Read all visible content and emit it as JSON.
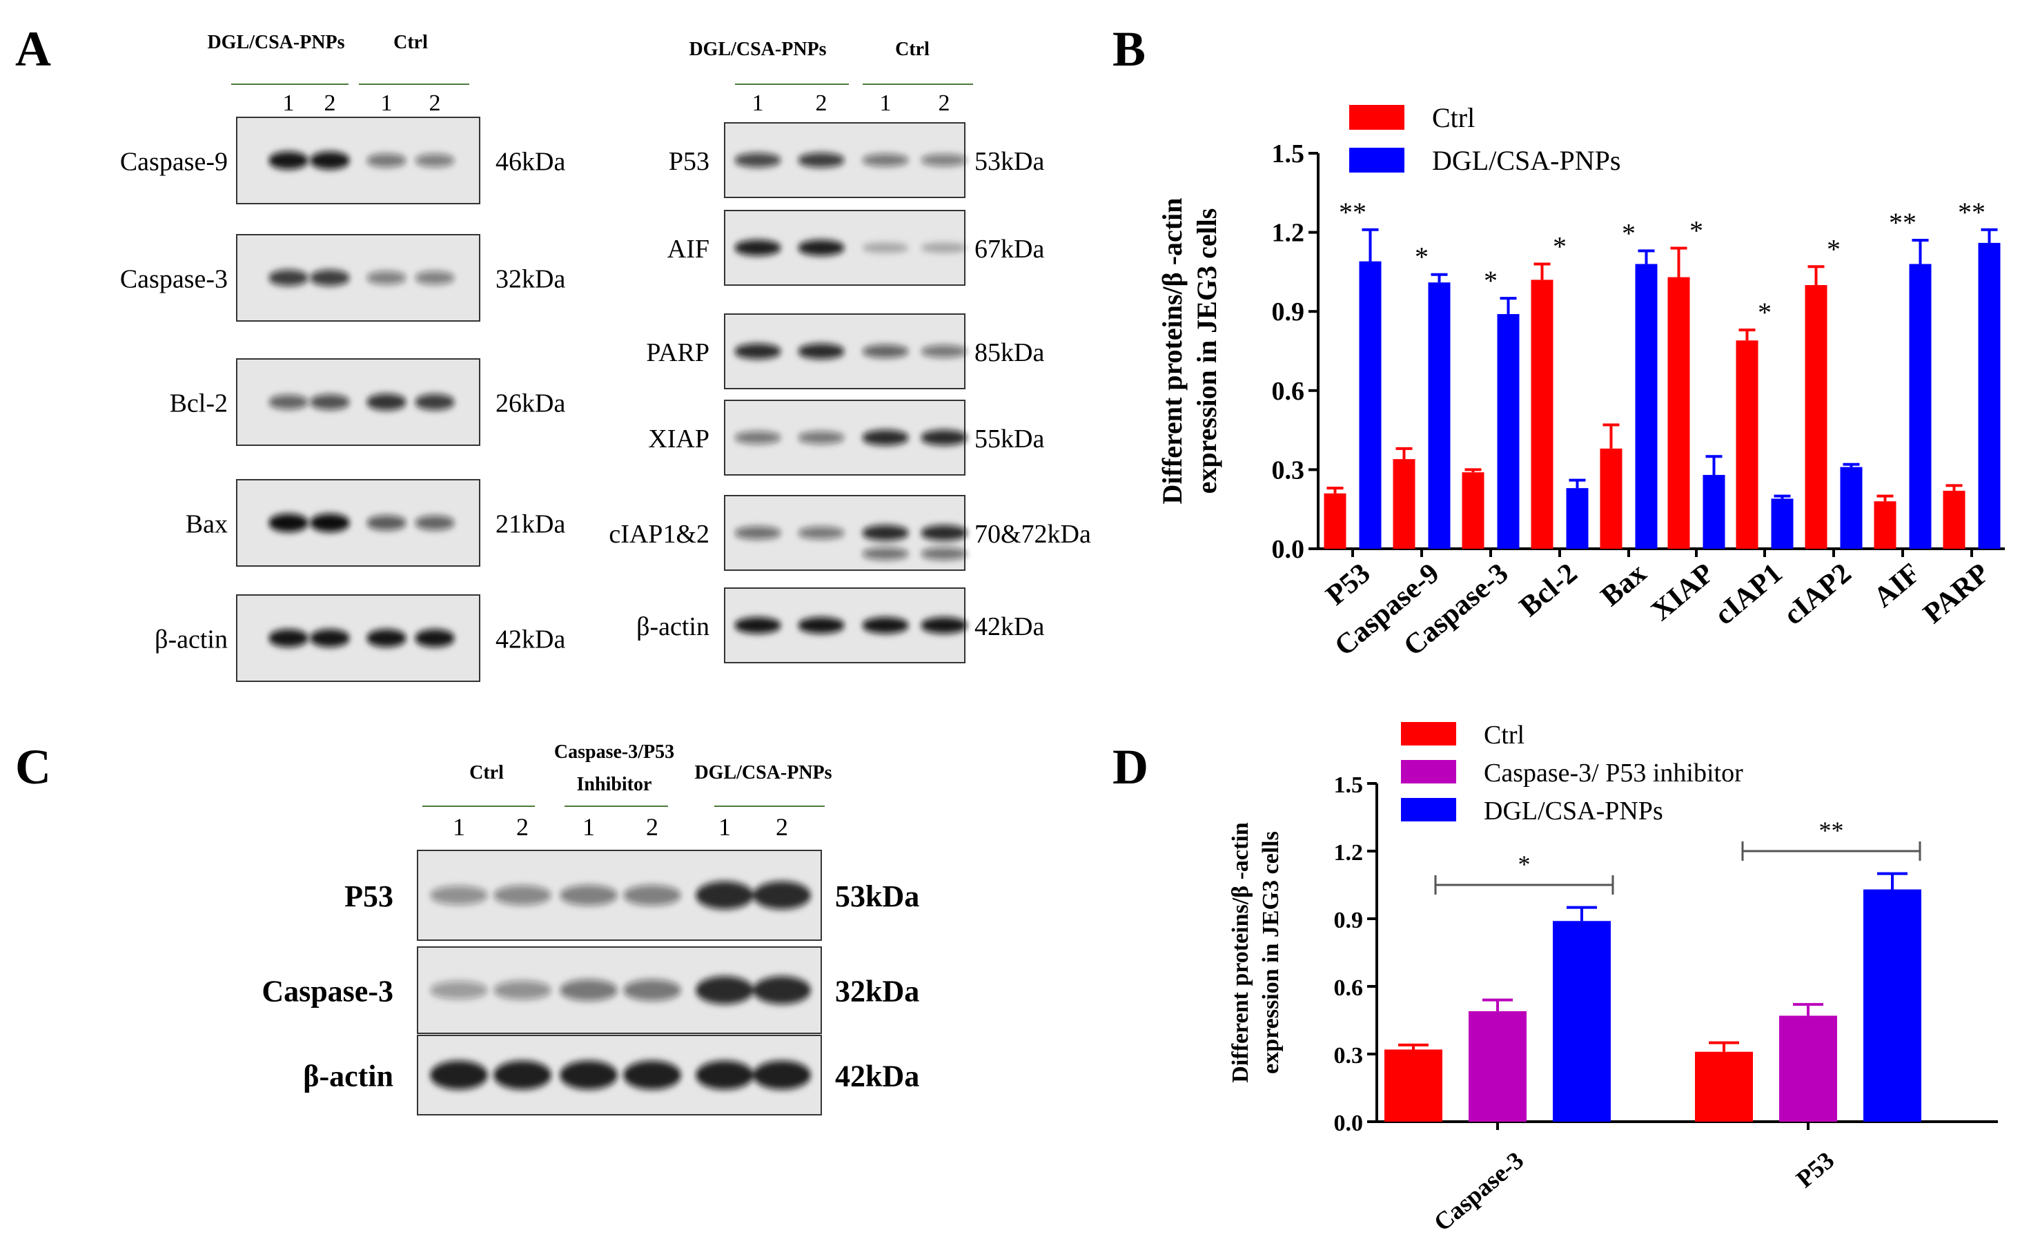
{
  "panel_labels": {
    "a": "A",
    "b": "B",
    "c": "C",
    "d": "D"
  },
  "blot_a": {
    "left": {
      "groups": [
        "DGL/CSA-PNPs",
        "Ctrl"
      ],
      "lanes": [
        "1",
        "2",
        "1",
        "2"
      ],
      "rows": [
        {
          "label": "Caspase-9",
          "kda": "46kDa",
          "bands": [
            0.95,
            0.95,
            0.45,
            0.4
          ]
        },
        {
          "label": "Caspase-3",
          "kda": "32kDa",
          "bands": [
            0.75,
            0.75,
            0.4,
            0.4
          ]
        },
        {
          "label": "Bcl-2",
          "kda": "26kDa",
          "bands": [
            0.55,
            0.65,
            0.8,
            0.75
          ]
        },
        {
          "label": "Bax",
          "kda": "21kDa",
          "bands": [
            1.0,
            1.0,
            0.6,
            0.55
          ]
        },
        {
          "label": "β-actin",
          "kda": "42kDa",
          "bands": [
            0.95,
            0.95,
            0.95,
            0.95
          ]
        }
      ]
    },
    "right": {
      "groups": [
        "DGL/CSA-PNPs",
        "Ctrl"
      ],
      "lanes": [
        "1",
        "2",
        "1",
        "2"
      ],
      "rows": [
        {
          "label": "P53",
          "kda": "53kDa",
          "bands": [
            0.7,
            0.75,
            0.45,
            0.4
          ]
        },
        {
          "label": "AIF",
          "kda": "67kDa",
          "bands": [
            0.9,
            0.9,
            0.15,
            0.15
          ]
        },
        {
          "label": "PARP",
          "kda": "85kDa",
          "bands": [
            0.85,
            0.85,
            0.55,
            0.45
          ]
        },
        {
          "label": "XIAP",
          "kda": "55kDa",
          "bands": [
            0.45,
            0.45,
            0.85,
            0.85
          ]
        },
        {
          "label": "cIAP1&2",
          "kda": "70&72kDa",
          "bands": [
            0.5,
            0.45,
            0.85,
            0.85
          ]
        },
        {
          "label": "β-actin",
          "kda": "42kDa",
          "bands": [
            0.95,
            0.95,
            0.95,
            0.95
          ]
        }
      ]
    }
  },
  "blot_c": {
    "groups": [
      "Ctrl",
      "Caspase-3/P53",
      "Inhibitor",
      "DGL/CSA-PNPs"
    ],
    "lanes": [
      "1",
      "2",
      "1",
      "2",
      "1",
      "2"
    ],
    "rows": [
      {
        "label": "P53",
        "kda": "53kDa",
        "bands": [
          0.3,
          0.35,
          0.4,
          0.4,
          0.85,
          0.85
        ]
      },
      {
        "label": "Caspase-3",
        "kda": "32kDa",
        "bands": [
          0.25,
          0.3,
          0.45,
          0.45,
          0.85,
          0.85
        ]
      },
      {
        "label": "β-actin",
        "kda": "42kDa",
        "bands": [
          0.9,
          0.9,
          0.9,
          0.9,
          0.9,
          0.9
        ]
      }
    ]
  },
  "chart_data": [
    {
      "id": "B",
      "type": "bar",
      "title": "",
      "ylabel_line1": "Different proteins/β -actin",
      "ylabel_line2": "expression in JEG3 cells",
      "xlabel": "",
      "ylim": [
        0,
        1.5
      ],
      "yticks": [
        "0.0",
        "0.3",
        "0.6",
        "0.9",
        "1.2",
        "1.5"
      ],
      "ytick_values": [
        0,
        0.3,
        0.6,
        0.9,
        1.2,
        1.5
      ],
      "legend_position": "top-left",
      "categories": [
        "P53",
        "Caspase-9",
        "Caspase-3",
        "Bcl-2",
        "Bax",
        "XIAP",
        "cIAP1",
        "cIAP2",
        "AIF",
        "PARP"
      ],
      "series": [
        {
          "name": "Ctrl",
          "color": "#ff0000",
          "values": [
            0.21,
            0.34,
            0.29,
            1.02,
            0.38,
            1.03,
            0.79,
            1.0,
            0.18,
            0.22
          ],
          "errors": [
            0.02,
            0.04,
            0.01,
            0.06,
            0.09,
            0.11,
            0.04,
            0.07,
            0.02,
            0.02
          ]
        },
        {
          "name": "DGL/CSA-PNPs",
          "color": "#0000ff",
          "values": [
            1.09,
            1.01,
            0.89,
            0.23,
            1.08,
            0.28,
            0.19,
            0.31,
            1.08,
            1.16
          ],
          "errors": [
            0.12,
            0.03,
            0.06,
            0.03,
            0.05,
            0.07,
            0.01,
            0.01,
            0.09,
            0.05
          ]
        }
      ],
      "significance": [
        "**",
        "*",
        "*",
        "*",
        "*",
        "*",
        "*",
        "*",
        "**",
        "**"
      ]
    },
    {
      "id": "D",
      "type": "bar",
      "title": "",
      "ylabel_line1": "Different proteins/β -actin",
      "ylabel_line2": "expression in JEG3 cells",
      "xlabel": "",
      "ylim": [
        0,
        1.5
      ],
      "yticks": [
        "0.0",
        "0.3",
        "0.6",
        "0.9",
        "1.2",
        "1.5"
      ],
      "ytick_values": [
        0,
        0.3,
        0.6,
        0.9,
        1.2,
        1.5
      ],
      "legend_position": "top-left",
      "categories": [
        "Caspase-3",
        "P53"
      ],
      "series": [
        {
          "name": "Ctrl",
          "color": "#ff0000",
          "values": [
            0.32,
            0.31
          ],
          "errors": [
            0.02,
            0.04
          ]
        },
        {
          "name": "Caspase-3/ P53 inhibitor",
          "color": "#bb00bb",
          "values": [
            0.49,
            0.47
          ],
          "errors": [
            0.05,
            0.05
          ]
        },
        {
          "name": "DGL/CSA-PNPs",
          "color": "#0000ff",
          "values": [
            0.89,
            1.03
          ],
          "errors": [
            0.06,
            0.07
          ]
        }
      ],
      "significance": [
        "*",
        "**"
      ]
    }
  ]
}
